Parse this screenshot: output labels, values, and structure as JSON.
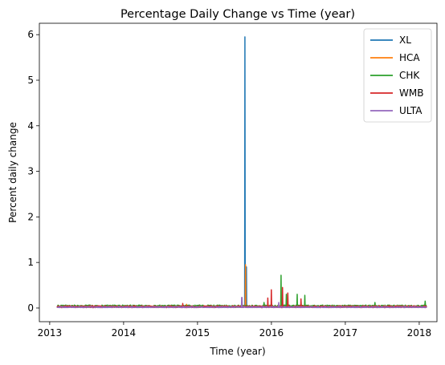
{
  "chart_data": {
    "type": "line",
    "title": "Percentage Daily Change vs Time (year)",
    "xlabel": "Time (year)",
    "ylabel": "Percent daily change",
    "xlim": [
      2012.86,
      2018.24
    ],
    "ylim": [
      -0.3,
      6.25
    ],
    "x_ticks": [
      2013,
      2014,
      2015,
      2016,
      2017,
      2018
    ],
    "y_ticks": [
      0,
      1,
      2,
      3,
      4,
      5,
      6
    ],
    "grid": false,
    "legend_placement": "top-right",
    "x_range": [
      2013.1,
      2018.1
    ],
    "series": [
      {
        "name": "XL",
        "color": "#1f77b4",
        "baseline": 0.02,
        "noise": 0.02,
        "spikes": [
          [
            2015.64,
            5.95
          ],
          [
            2015.66,
            0.9
          ]
        ]
      },
      {
        "name": "HCA",
        "color": "#ff7f0e",
        "baseline": 0.02,
        "noise": 0.03,
        "spikes": [
          [
            2015.65,
            0.95
          ],
          [
            2014.85,
            0.08
          ]
        ]
      },
      {
        "name": "CHK",
        "color": "#2ca02c",
        "baseline": 0.03,
        "noise": 0.05,
        "spikes": [
          [
            2016.13,
            0.72
          ],
          [
            2016.2,
            0.3
          ],
          [
            2016.35,
            0.3
          ],
          [
            2016.45,
            0.28
          ],
          [
            2015.9,
            0.12
          ],
          [
            2017.4,
            0.12
          ],
          [
            2018.08,
            0.15
          ],
          [
            2013.5,
            0.06
          ]
        ]
      },
      {
        "name": "WMB",
        "color": "#d62728",
        "baseline": 0.02,
        "noise": 0.04,
        "spikes": [
          [
            2016.0,
            0.4
          ],
          [
            2016.15,
            0.45
          ],
          [
            2016.22,
            0.33
          ],
          [
            2015.95,
            0.22
          ],
          [
            2016.4,
            0.2
          ],
          [
            2014.8,
            0.1
          ]
        ]
      },
      {
        "name": "ULTA",
        "color": "#9467bd",
        "baseline": 0.015,
        "noise": 0.02,
        "spikes": [
          [
            2015.6,
            0.23
          ],
          [
            2016.1,
            0.12
          ]
        ]
      }
    ]
  }
}
